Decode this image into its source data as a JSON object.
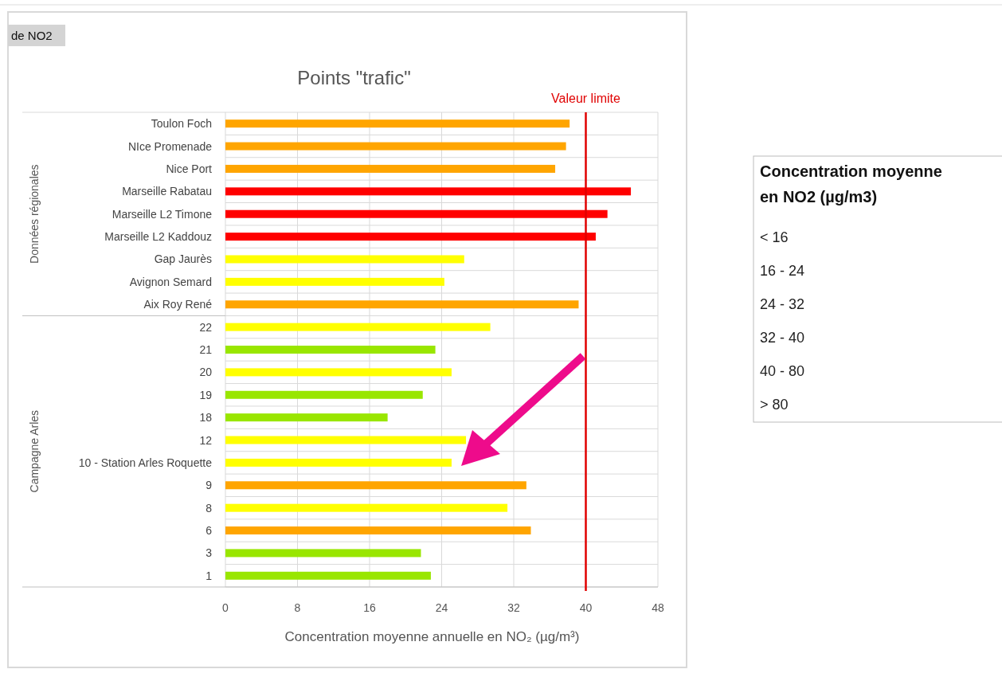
{
  "chart_data": {
    "type": "bar",
    "orientation": "horizontal",
    "title": "Points \"trafic\"",
    "xlabel": "Concentration moyenne annuelle en NO₂ (µg/m³)",
    "categories": [
      "Toulon Foch",
      "NIce Promenade",
      "Nice Port",
      "Marseille Rabatau",
      "Marseille L2 Timone",
      "Marseille L2 Kaddouz",
      "Gap Jaurès",
      "Avignon Semard",
      "Aix Roy René",
      "22",
      "21",
      "20",
      "19",
      "18",
      "12",
      "10 - Station Arles Roquette",
      "9",
      "8",
      "6",
      "3",
      "1"
    ],
    "values": [
      38.2,
      37.8,
      36.6,
      45.0,
      42.4,
      41.1,
      26.5,
      24.3,
      39.2,
      29.4,
      23.3,
      25.1,
      21.9,
      18.0,
      26.7,
      25.1,
      33.4,
      31.3,
      33.9,
      21.7,
      22.8
    ],
    "colors": [
      "#ffa500",
      "#ffa500",
      "#ffa500",
      "#ff0000",
      "#ff0000",
      "#ff0000",
      "#ffff00",
      "#ffff00",
      "#ffa500",
      "#ffff00",
      "#99e600",
      "#ffff00",
      "#99e600",
      "#99e600",
      "#ffff00",
      "#ffff00",
      "#ffa500",
      "#ffff00",
      "#ffa500",
      "#99e600",
      "#99e600"
    ],
    "xlim": [
      0,
      48
    ],
    "xticks": [
      0,
      8,
      16,
      24,
      32,
      40,
      48
    ],
    "grid": true,
    "ref_lines": [
      {
        "axis": "x",
        "value": 40,
        "label": "Valeur limite",
        "color": "#e00000"
      }
    ],
    "annotations": [
      "de NO2",
      "Données régionales",
      "Campagne Arles",
      "Concentration moyenne en NO2 (µg/m3)",
      "< 16",
      "16 - 24",
      "24 - 32",
      "32 - 40",
      "40 - 80",
      "> 80"
    ]
  }
}
